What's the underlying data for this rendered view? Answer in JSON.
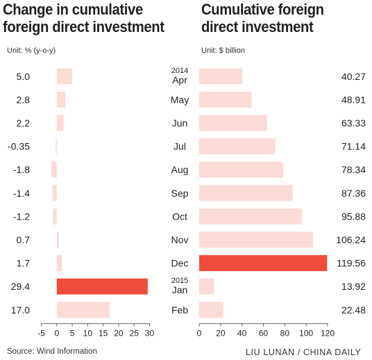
{
  "left_title_line1": "Change in cumulative",
  "left_title_line2": "foreign direct investment",
  "right_title_line1": "Cumulative foreign",
  "right_title_line2": "direct investment",
  "left_unit": "Unit: % (y-o-y)",
  "right_unit": "Unit: $ billion",
  "source": "Source: Wind Information",
  "credit": "LIU LUNAN / CHINA DAILY",
  "colors": {
    "normal_bar": "#fadbd6",
    "highlight_bar": "#ef4c3c",
    "text": "#231f20",
    "axis": "#666666"
  },
  "chart_data": [
    {
      "type": "bar",
      "orientation": "horizontal",
      "title": "Change in cumulative foreign direct investment",
      "unit": "Unit: % (y-o-y)",
      "categories": [
        "Apr",
        "May",
        "Jun",
        "Jul",
        "Aug",
        "Sep",
        "Oct",
        "Nov",
        "Dec",
        "Jan",
        "Feb"
      ],
      "year_markers": [
        {
          "category": "Apr",
          "label": "2014"
        },
        {
          "category": "Jan",
          "label": "2015"
        }
      ],
      "values": [
        5.0,
        2.8,
        2.2,
        -0.35,
        -1.8,
        -1.4,
        -1.2,
        0.7,
        1.7,
        29.4,
        17.0
      ],
      "value_labels": [
        "5.0",
        "2.8",
        "2.2",
        "-0.35",
        "-1.8",
        "-1.4",
        "-1.2",
        "0.7",
        "1.7",
        "29.4",
        "17.0"
      ],
      "highlight": [
        "Jan"
      ],
      "xlim": [
        -5,
        30
      ],
      "xticks": [
        -5,
        0,
        5,
        10,
        15,
        20,
        25,
        30
      ],
      "xtick_labels": [
        "-5",
        "0",
        "5",
        "10",
        "15",
        "20",
        "25",
        "30"
      ],
      "grid": false
    },
    {
      "type": "bar",
      "orientation": "horizontal",
      "title": "Cumulative foreign direct investment",
      "unit": "Unit: $ billion",
      "categories": [
        "Apr",
        "May",
        "Jun",
        "Jul",
        "Aug",
        "Sep",
        "Oct",
        "Nov",
        "Dec",
        "Jan",
        "Feb"
      ],
      "values": [
        40.27,
        48.91,
        63.33,
        71.14,
        78.34,
        87.36,
        95.88,
        106.24,
        119.56,
        13.92,
        22.48
      ],
      "value_labels": [
        "40.27",
        "48.91",
        "63.33",
        "71.14",
        "78.34",
        "87.36",
        "95.88",
        "106.24",
        "119.56",
        "13.92",
        "22.48"
      ],
      "highlight": [
        "Dec"
      ],
      "xlim": [
        0,
        120
      ],
      "xticks": [
        0,
        20,
        40,
        60,
        80,
        100,
        120
      ],
      "xtick_labels": [
        "0",
        "20",
        "40",
        "60",
        "80",
        "100",
        "120"
      ],
      "grid": false
    }
  ]
}
